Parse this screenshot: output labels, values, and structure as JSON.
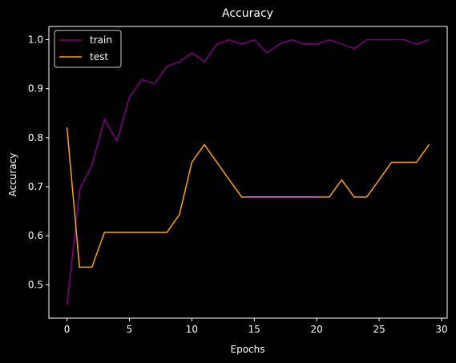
{
  "chart_data": {
    "type": "line",
    "title": "Accuracy",
    "xlabel": "Epochs",
    "ylabel": "Accuracy",
    "xlim": [
      -1.45,
      30.45
    ],
    "ylim": [
      0.432,
      1.027
    ],
    "xticks": [
      0,
      5,
      10,
      15,
      20,
      25,
      30
    ],
    "yticks": [
      0.5,
      0.6,
      0.7,
      0.8,
      0.9,
      1.0
    ],
    "ytick_labels": [
      "0.5",
      "0.6",
      "0.7",
      "0.8",
      "0.9",
      "1.0"
    ],
    "grid": false,
    "legend_position": "upper-left",
    "x": [
      0,
      1,
      2,
      3,
      4,
      5,
      6,
      7,
      8,
      9,
      10,
      11,
      12,
      13,
      14,
      15,
      16,
      17,
      18,
      19,
      20,
      21,
      22,
      23,
      24,
      25,
      26,
      27,
      28,
      29
    ],
    "series": [
      {
        "name": "train",
        "color": "#800080",
        "values": [
          0.459,
          0.694,
          0.745,
          0.838,
          0.793,
          0.883,
          0.919,
          0.91,
          0.946,
          0.955,
          0.973,
          0.955,
          0.991,
          1.0,
          0.991,
          1.0,
          0.973,
          0.991,
          1.0,
          0.991,
          0.991,
          1.0,
          0.991,
          0.982,
          1.0,
          1.0,
          1.0,
          1.0,
          0.991,
          1.0
        ]
      },
      {
        "name": "test",
        "color": "#ffa500",
        "values": [
          0.821,
          0.536,
          0.536,
          0.607,
          0.607,
          0.607,
          0.607,
          0.607,
          0.607,
          0.643,
          0.75,
          0.786,
          0.75,
          0.714,
          0.679,
          0.679,
          0.679,
          0.679,
          0.679,
          0.679,
          0.679,
          0.679,
          0.714,
          0.679,
          0.679,
          0.714,
          0.75,
          0.75,
          0.75,
          0.786
        ]
      }
    ]
  }
}
